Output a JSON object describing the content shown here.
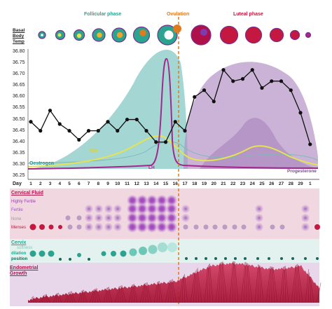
{
  "phases": {
    "follicular": "Follicular phase",
    "ovulation": "Ovulation",
    "luteal": "Luteal phase"
  },
  "bbt": {
    "label_lines": [
      "Basal",
      "Body",
      "Temp"
    ],
    "y_ticks": [
      "36.80",
      "36.75",
      "36.70",
      "36.65",
      "36.60",
      "36.55",
      "36.50",
      "36.45",
      "36.40",
      "36.35",
      "36.30",
      "36.25"
    ],
    "day_label": "Day",
    "days": [
      "1",
      "2",
      "3",
      "4",
      "5",
      "6",
      "7",
      "8",
      "9",
      "10",
      "11",
      "12",
      "13",
      "14",
      "15",
      "16",
      "17",
      "18",
      "19",
      "20",
      "21",
      "22",
      "23",
      "24",
      "25",
      "26",
      "27",
      "28",
      "29",
      "1"
    ],
    "temps": [
      36.49,
      36.45,
      36.54,
      36.48,
      36.45,
      36.41,
      36.45,
      36.45,
      36.49,
      36.45,
      36.5,
      36.5,
      36.45,
      36.4,
      36.4,
      36.49,
      36.45,
      36.6,
      36.63,
      36.58,
      36.72,
      36.67,
      36.68,
      36.72,
      36.64,
      36.67,
      36.67,
      36.63,
      36.53,
      36.39
    ],
    "hormone_labels": {
      "oestrogen": "Oestrogen",
      "fsh": "FSH",
      "lh": "LH",
      "progesterone": "Progesterone"
    }
  },
  "cervical_fluid": {
    "title": "Cervical Fluid",
    "levels": [
      "Highly Fertile",
      "Fertile",
      "None",
      "Menses"
    ]
  },
  "cervix": {
    "title": "Cervix",
    "subs": [
      "softness",
      "dilation",
      "position"
    ]
  },
  "endometrial": {
    "title_lines": [
      "Endometrial",
      "Growth"
    ]
  },
  "colors": {
    "follicular": "#2aa38f",
    "ovulation": "#e07a1f",
    "luteal": "#c0143c",
    "bbt_line": "#111111",
    "oestrogen_fill": "#86c9c5",
    "progesterone_fill": "#b493c4",
    "lh": "#a5268c",
    "fsh": "#e6e350",
    "cf_band": "#f1d7e0",
    "cervix_band": "#e3f2ee",
    "endo_band": "#e8d6ea",
    "endo_red": "#c41840"
  }
}
